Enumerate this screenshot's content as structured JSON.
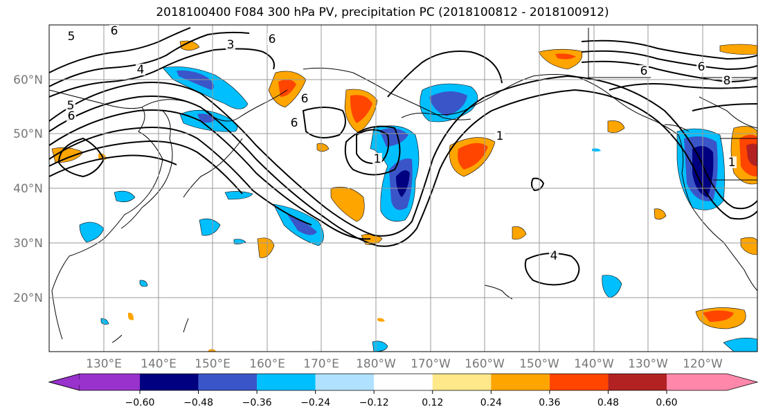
{
  "title": "2018100400 F084 300 hPa PV, precipitation PC (2018100812 - 2018100912)",
  "map": {
    "lat_labels": [
      "60°N",
      "50°N",
      "40°N",
      "30°N",
      "20°N"
    ],
    "lon_labels": [
      "130°E",
      "140°E",
      "150°E",
      "160°E",
      "170°E",
      "180°W",
      "170°W",
      "160°W",
      "150°W",
      "140°W",
      "130°W",
      "120°W"
    ],
    "contour_labels": [
      "6",
      "5",
      "3",
      "4",
      "5",
      "6",
      "6",
      "6",
      "6",
      "1",
      "1",
      "4",
      "6",
      "8",
      "1",
      "6"
    ]
  },
  "colorbar": {
    "colors": [
      "#9932cc",
      "#000080",
      "#3a55c8",
      "#00bfff",
      "#b0e2ff",
      "#ffffff",
      "#ffe88a",
      "#ffa500",
      "#ff4500",
      "#b22222",
      "#ff88aa"
    ],
    "ticks": [
      "−0.60",
      "−0.48",
      "−0.36",
      "−0.24",
      "−0.12",
      "0.12",
      "0.24",
      "0.36",
      "0.48",
      "0.60"
    ]
  },
  "colors": {
    "contour": "#000000",
    "grid": "#999999",
    "coast": "#000000"
  }
}
